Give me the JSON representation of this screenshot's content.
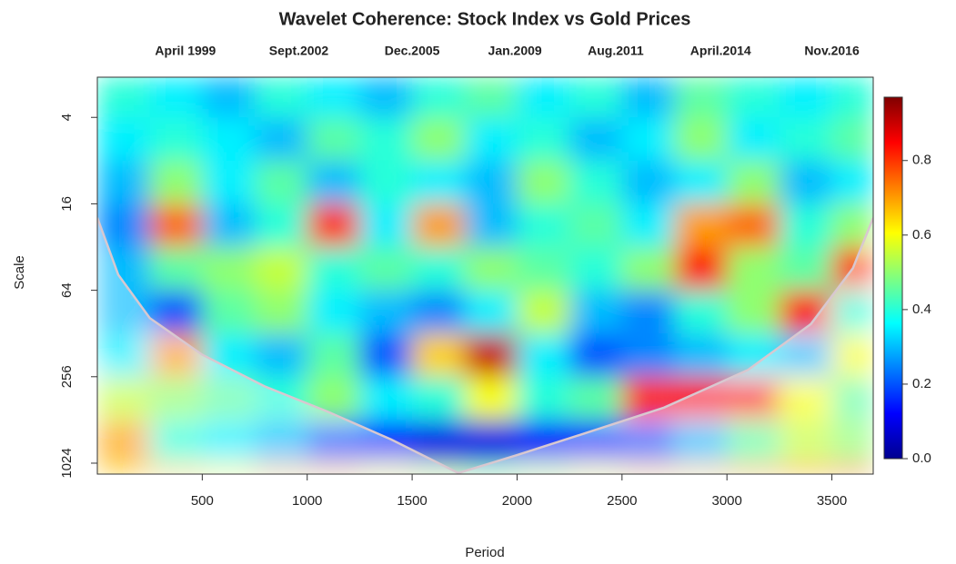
{
  "chart_data": {
    "type": "heatmap",
    "title": "Wavelet Coherence: Stock Index vs Gold Prices",
    "x_label": "Period",
    "y_label": "Scale",
    "xlim": [
      0,
      3697
    ],
    "xticks": [
      500,
      1000,
      1500,
      2000,
      2500,
      3000,
      3500
    ],
    "x2ticks": [
      {
        "value": 420,
        "label": "April 1999"
      },
      {
        "value": 960,
        "label": "Sept.2002"
      },
      {
        "value": 1500,
        "label": "Dec.2005"
      },
      {
        "value": 1990,
        "label": "Jan.2009"
      },
      {
        "value": 2470,
        "label": "Aug.2011"
      },
      {
        "value": 2970,
        "label": "April.2014"
      },
      {
        "value": 3500,
        "label": "Nov.2016"
      }
    ],
    "ylim": [
      2.1,
      1220
    ],
    "y_log_base": 2,
    "y_reversed": true,
    "yticks": [
      4,
      16,
      64,
      256,
      1024
    ],
    "colormap": "jet",
    "zlim": [
      0,
      0.97
    ],
    "zticks": [
      {
        "value": 0,
        "label": "0.0"
      },
      0.2,
      0.4,
      0.6,
      0.8
    ],
    "x_bins": [
      0,
      250,
      500,
      750,
      1000,
      1250,
      1500,
      1750,
      2000,
      2250,
      2500,
      2750,
      3000,
      3250,
      3500,
      3697
    ],
    "y_bins": [
      2.1,
      4,
      8,
      16,
      32,
      64,
      128,
      256,
      512,
      1024,
      1220
    ],
    "values": [
      [
        0.4,
        0.35,
        0.3,
        0.4,
        0.35,
        0.3,
        0.4,
        0.45,
        0.35,
        0.4,
        0.3,
        0.45,
        0.4,
        0.35,
        0.4
      ],
      [
        0.35,
        0.4,
        0.35,
        0.3,
        0.45,
        0.4,
        0.5,
        0.35,
        0.4,
        0.3,
        0.35,
        0.5,
        0.35,
        0.4,
        0.45
      ],
      [
        0.3,
        0.5,
        0.35,
        0.45,
        0.3,
        0.4,
        0.35,
        0.3,
        0.5,
        0.4,
        0.3,
        0.35,
        0.5,
        0.3,
        0.35
      ],
      [
        0.25,
        0.75,
        0.3,
        0.4,
        0.8,
        0.35,
        0.7,
        0.3,
        0.4,
        0.45,
        0.35,
        0.7,
        0.75,
        0.4,
        0.5
      ],
      [
        0.3,
        0.45,
        0.5,
        0.55,
        0.4,
        0.45,
        0.4,
        0.5,
        0.45,
        0.4,
        0.5,
        0.85,
        0.5,
        0.45,
        0.8
      ],
      [
        0.3,
        0.2,
        0.45,
        0.5,
        0.35,
        0.3,
        0.25,
        0.35,
        0.55,
        0.3,
        0.25,
        0.4,
        0.5,
        0.85,
        0.4
      ],
      [
        0.35,
        0.7,
        0.35,
        0.3,
        0.45,
        0.2,
        0.65,
        0.9,
        0.35,
        0.2,
        0.25,
        0.3,
        0.35,
        0.3,
        0.6
      ],
      [
        0.55,
        0.5,
        0.45,
        0.4,
        0.5,
        0.35,
        0.4,
        0.6,
        0.4,
        0.45,
        0.8,
        0.85,
        0.85,
        0.6,
        0.45
      ],
      [
        0.7,
        0.4,
        0.35,
        0.3,
        0.2,
        0.15,
        0.1,
        0.1,
        0.12,
        0.15,
        0.2,
        0.3,
        0.45,
        0.55,
        0.5
      ],
      [
        0.65,
        0.65,
        0.6,
        0.65,
        0.65,
        0.6,
        0.55,
        0.5,
        0.55,
        0.6,
        0.65,
        0.65,
        0.7,
        0.7,
        0.75
      ]
    ],
    "cone_of_influence": {
      "x": [
        0,
        100,
        250,
        500,
        800,
        1100,
        1400,
        1720,
        2000,
        2300,
        2700,
        3100,
        3400,
        3600,
        3697
      ],
      "y": [
        20,
        50,
        100,
        180,
        300,
        450,
        700,
        1200,
        900,
        650,
        420,
        230,
        110,
        45,
        20
      ]
    }
  }
}
